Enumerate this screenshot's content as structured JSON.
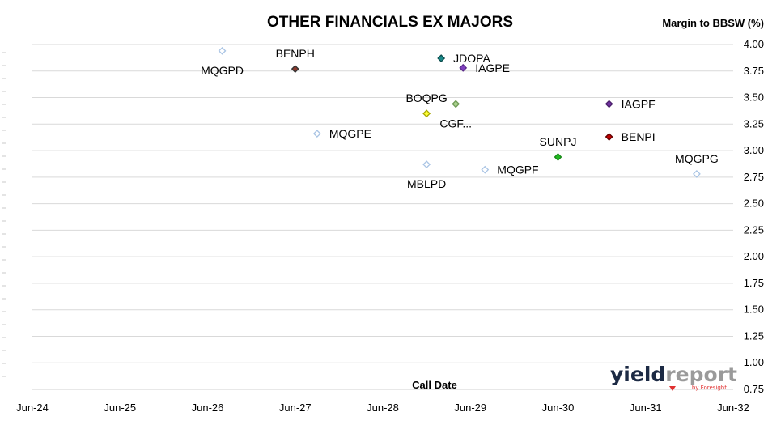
{
  "chart_data": {
    "type": "scatter",
    "title": "OTHER FINANCIALS EX MAJORS",
    "xlabel": "Call Date",
    "ylabel": "Margin to BBSW (%)",
    "x_ticks": [
      "Jun-24",
      "Jun-25",
      "Jun-26",
      "Jun-27",
      "Jun-28",
      "Jun-29",
      "Jun-30",
      "Jun-31",
      "Jun-32"
    ],
    "xlim": [
      "2024-06",
      "2032-06"
    ],
    "ylim": [
      0.75,
      4.0
    ],
    "y_ticks": [
      "0.75",
      "1.00",
      "1.25",
      "1.50",
      "1.75",
      "2.00",
      "2.25",
      "2.50",
      "2.75",
      "3.00",
      "3.25",
      "3.50",
      "3.75",
      "4.00"
    ],
    "grid": true,
    "legend": "none",
    "points": [
      {
        "name": "MQGPD",
        "x": "2026-08",
        "y": 3.94,
        "color": "#ffffff",
        "stroke": "#a9c4e4",
        "label_pos": "below-left"
      },
      {
        "name": "BENPH",
        "x": "2027-06",
        "y": 3.77,
        "color": "#8b3a2e",
        "stroke": "#333333",
        "label_pos": "above"
      },
      {
        "name": "MQGPE",
        "x": "2027-09",
        "y": 3.16,
        "color": "#ffffff",
        "stroke": "#a9c4e4",
        "label_pos": "right"
      },
      {
        "name": "BOQPG",
        "x": "2028-12",
        "y": 3.35,
        "color": "#ffff33",
        "stroke": "#a6a600",
        "label_pos": "above"
      },
      {
        "name": "MBLPD",
        "x": "2028-12",
        "y": 2.87,
        "color": "#ffffff",
        "stroke": "#a9c4e4",
        "label_pos": "below"
      },
      {
        "name": "JDOPA",
        "x": "2029-02",
        "y": 3.87,
        "color": "#1a8a8a",
        "stroke": "#0d4d4d",
        "label_pos": "right"
      },
      {
        "name": "CGF...",
        "x": "2029-04",
        "y": 3.44,
        "color": "#a8d08d",
        "stroke": "#6f9a55",
        "label_pos": "below"
      },
      {
        "name": "IAGPE",
        "x": "2029-05",
        "y": 3.78,
        "color": "#8040c0",
        "stroke": "#5a2a8a",
        "label_pos": "right"
      },
      {
        "name": "MQGPF",
        "x": "2029-08",
        "y": 2.82,
        "color": "#ffffff",
        "stroke": "#a9c4e4",
        "label_pos": "right"
      },
      {
        "name": "SUNPJ",
        "x": "2030-06",
        "y": 2.94,
        "color": "#22b922",
        "stroke": "#188a18",
        "label_pos": "above"
      },
      {
        "name": "IAGPF",
        "x": "2031-01",
        "y": 3.44,
        "color": "#7030a0",
        "stroke": "#4a1f6a",
        "label_pos": "right"
      },
      {
        "name": "BENPI",
        "x": "2031-01",
        "y": 3.13,
        "color": "#c00000",
        "stroke": "#600000",
        "label_pos": "right"
      },
      {
        "name": "MQGPG",
        "x": "2032-01",
        "y": 2.78,
        "color": "#ffffff",
        "stroke": "#a9c4e4",
        "label_pos": "above"
      }
    ]
  },
  "brand": {
    "name_part1": "yield",
    "name_part2": "report",
    "sub": "by Foresight",
    "color1": "#1c2a44",
    "color2": "#9a9a9a",
    "accent": "#e03030"
  }
}
